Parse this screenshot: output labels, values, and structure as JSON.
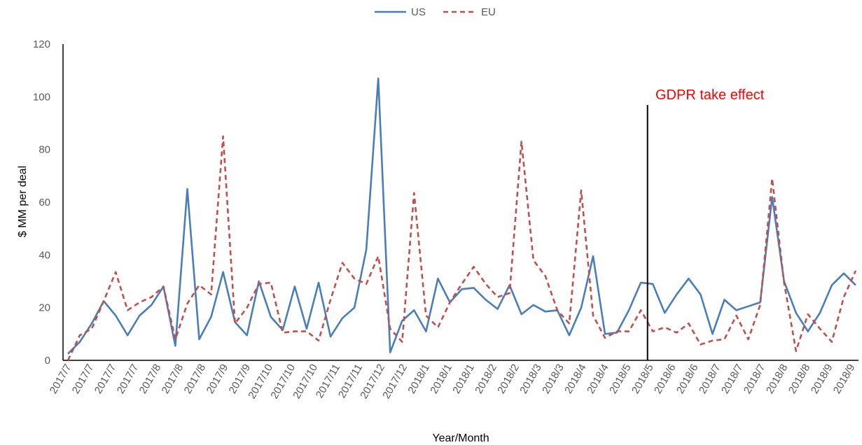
{
  "chart_data": {
    "type": "line",
    "xlabel": "Year/Month",
    "ylabel": "$ MM per deal",
    "ylim": [
      0,
      120
    ],
    "yticks": [
      0,
      20,
      40,
      60,
      80,
      100,
      120
    ],
    "x_tick_labels": [
      "2017/7",
      "2017/7",
      "2017/7",
      "2017/7",
      "2017/8",
      "2017/8",
      "2017/8",
      "2017/9",
      "2017/9",
      "2017/10",
      "2017/10",
      "2017/10",
      "2017/11",
      "2017/11",
      "2017/12",
      "2017/12",
      "2018/1",
      "2018/1",
      "2018/1",
      "2018/2",
      "2018/2",
      "2018/3",
      "2018/3",
      "2018/4",
      "2018/4",
      "2018/5",
      "2018/5",
      "2018/6",
      "2018/6",
      "2018/7",
      "2018/7",
      "2018/7",
      "2018/8",
      "2018/8",
      "2018/9",
      "2018/9"
    ],
    "legend_position": "top-center",
    "series": [
      {
        "name": "US",
        "color": "#4a7ebb",
        "dash": "solid",
        "values": [
          2.5,
          7,
          14,
          22.5,
          17,
          9.5,
          17,
          21,
          28,
          5.5,
          65,
          8,
          16.5,
          33.5,
          14.5,
          9.5,
          30,
          16.5,
          11.5,
          28,
          12,
          29.5,
          9,
          16,
          20,
          42,
          107,
          3,
          15,
          19,
          11,
          31,
          22,
          27,
          27.5,
          23,
          19.5,
          28.5,
          17.5,
          21,
          18.5,
          19,
          9.5,
          20,
          39.5,
          10,
          10.5,
          19,
          29.5,
          29,
          18,
          25,
          31,
          25,
          10,
          23,
          19,
          20.5,
          22,
          62,
          30,
          18,
          11,
          18,
          28.5,
          33,
          28.5
        ]
      },
      {
        "name": "EU",
        "color": "#c0504d",
        "dash": "dashed",
        "values": [
          0,
          9.5,
          12,
          22.5,
          33.5,
          19,
          22,
          24,
          28,
          8,
          21.5,
          28.5,
          25,
          85,
          14,
          20,
          29,
          29.5,
          10.5,
          11,
          11,
          7.5,
          23,
          37,
          31,
          29,
          39.5,
          12,
          7,
          63.5,
          17,
          12.5,
          22,
          29,
          35.5,
          29,
          24,
          25.5,
          83,
          38,
          32,
          19,
          14,
          64.5,
          17,
          8.5,
          11,
          11,
          19,
          11,
          12.5,
          10.5,
          14,
          6,
          7.5,
          8,
          17,
          8,
          21,
          69,
          29.5,
          3.5,
          17.5,
          12,
          7,
          24,
          34
        ]
      }
    ],
    "annotations": [
      {
        "text": "GDPR take effect",
        "color": "#ff0000",
        "vline_x_index": 49
      }
    ]
  }
}
